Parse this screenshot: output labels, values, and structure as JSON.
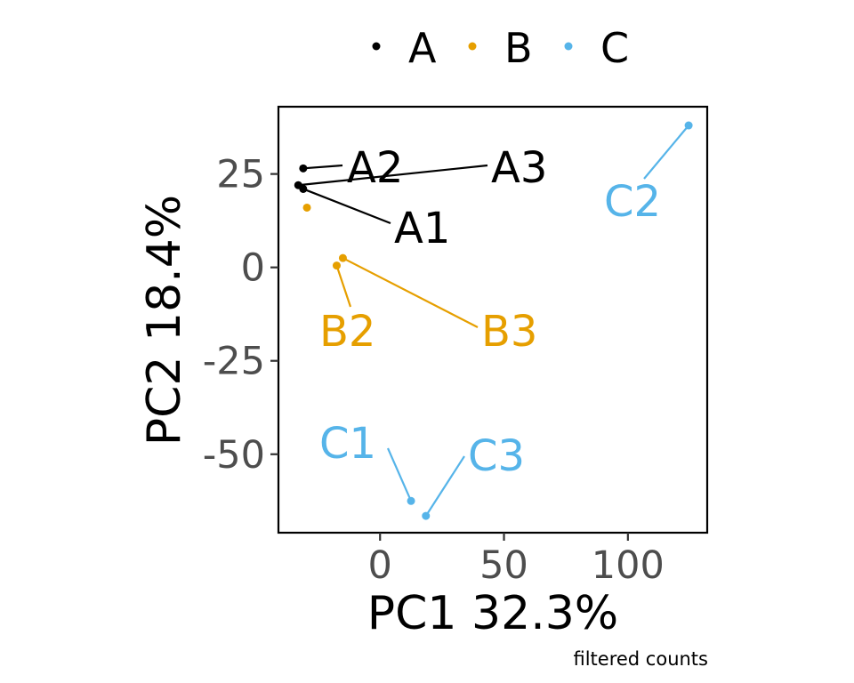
{
  "chart_data": {
    "type": "scatter",
    "xlabel": "PC1 32.3%",
    "ylabel": "PC2 18.4%",
    "caption": "filtered counts",
    "xlim": [
      -41,
      132
    ],
    "ylim": [
      -71,
      43
    ],
    "xticks": [
      0,
      50,
      100
    ],
    "yticks": [
      25,
      0,
      -25,
      -50
    ],
    "xtick_labels": [
      "0",
      "50",
      "100"
    ],
    "ytick_labels": [
      "25",
      "0",
      "-25",
      "-50"
    ],
    "grid": false,
    "legend_position": "top",
    "series": [
      {
        "name": "A",
        "color": "#000000",
        "points": [
          {
            "label": "A1",
            "x": -31,
            "y": 21
          },
          {
            "label": "A2",
            "x": -31,
            "y": 26.5
          },
          {
            "label": "A3",
            "x": -33,
            "y": 22
          }
        ]
      },
      {
        "name": "B",
        "color": "#E69F00",
        "points": [
          {
            "label": "",
            "x": -29.5,
            "y": 16
          },
          {
            "label": "B2",
            "x": -17.5,
            "y": 0.5
          },
          {
            "label": "B3",
            "x": -15,
            "y": 2.5
          }
        ]
      },
      {
        "name": "C",
        "color": "#56B4E9",
        "points": [
          {
            "label": "C1",
            "x": 12.5,
            "y": -62.5
          },
          {
            "label": "C2",
            "x": 124.5,
            "y": 38
          },
          {
            "label": "C3",
            "x": 18.5,
            "y": -66.5
          }
        ]
      }
    ]
  }
}
